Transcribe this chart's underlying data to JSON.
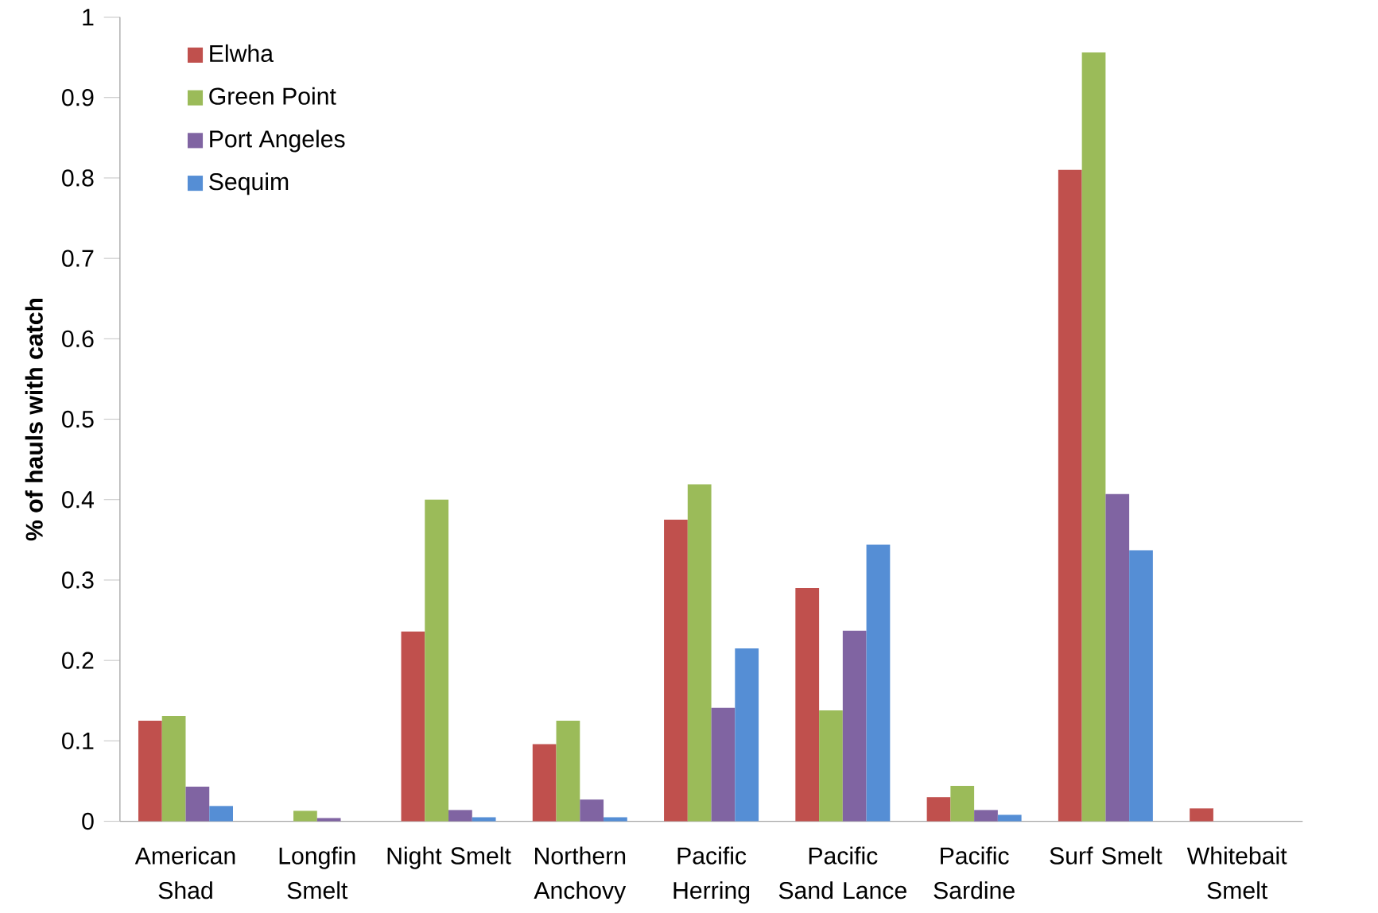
{
  "chart_data": {
    "type": "bar",
    "ylabel": "% of hauls with catch",
    "categories": [
      "American Shad",
      "Longfin Smelt",
      "Night Smelt",
      "Northern Anchovy",
      "Pacific Herring",
      "Pacific Sand Lance",
      "Pacific Sardine",
      "Surf Smelt",
      "Whitebait Smelt"
    ],
    "series": [
      {
        "name": "Elwha",
        "color": "#c0504d",
        "values": [
          0.125,
          0,
          0.236,
          0.096,
          0.375,
          0.29,
          0.03,
          0.81,
          0.016
        ]
      },
      {
        "name": "Green Point",
        "color": "#9bbb59",
        "values": [
          0.131,
          0.013,
          0.4,
          0.125,
          0.419,
          0.138,
          0.044,
          0.956,
          0
        ]
      },
      {
        "name": "Port Angeles",
        "color": "#8064a2",
        "values": [
          0.043,
          0.004,
          0.014,
          0.027,
          0.141,
          0.237,
          0.014,
          0.407,
          0
        ]
      },
      {
        "name": "Sequim",
        "color": "#558ed5",
        "values": [
          0.019,
          0,
          0.005,
          0.005,
          0.215,
          0.344,
          0.008,
          0.337,
          0
        ]
      }
    ],
    "ylim": [
      0,
      1
    ],
    "yticks": [
      0,
      0.1,
      0.2,
      0.3,
      0.4,
      0.5,
      0.6,
      0.7,
      0.8,
      0.9,
      1
    ],
    "legend": "top left",
    "grid": false
  }
}
